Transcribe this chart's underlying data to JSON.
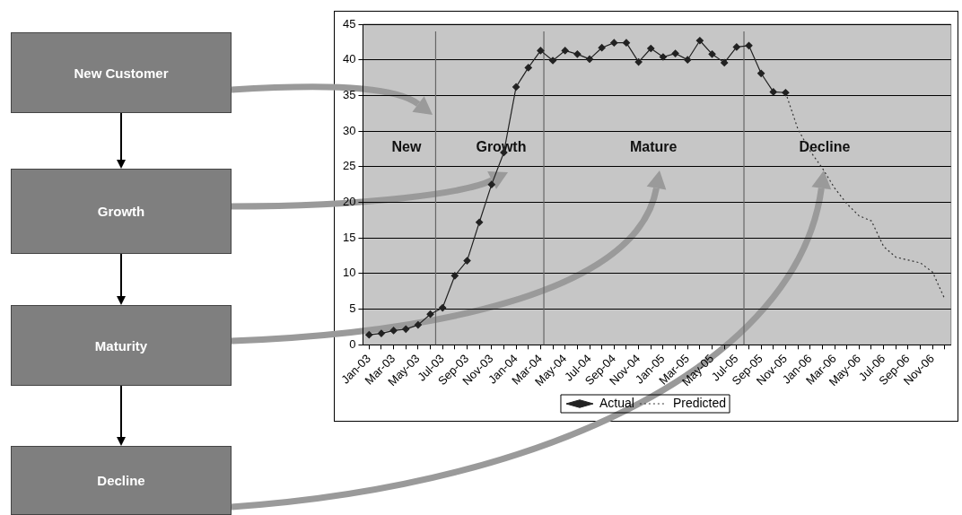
{
  "chart_data": {
    "type": "line",
    "xlim": [
      "2002-12-16",
      "2006-12-16"
    ],
    "xticks": [
      {
        "value": "2003-01",
        "label": "Jan-03"
      },
      {
        "value": "2003-02",
        "label": null
      },
      {
        "value": "2003-03",
        "label": "Mar-03"
      },
      {
        "value": "2003-04",
        "label": null
      },
      {
        "value": "2003-05",
        "label": "May-03"
      },
      {
        "value": "2003-06",
        "label": null
      },
      {
        "value": "2003-07",
        "label": "Jul-03"
      },
      {
        "value": "2003-08",
        "label": null
      },
      {
        "value": "2003-09",
        "label": "Sep-03"
      },
      {
        "value": "2003-10",
        "label": null
      },
      {
        "value": "2003-11",
        "label": "Nov-03"
      },
      {
        "value": "2003-12",
        "label": null
      },
      {
        "value": "2004-01",
        "label": "Jan-04"
      },
      {
        "value": "2004-02",
        "label": null
      },
      {
        "value": "2004-03",
        "label": "Mar-04"
      },
      {
        "value": "2004-04",
        "label": null
      },
      {
        "value": "2004-05",
        "label": "May-04"
      },
      {
        "value": "2004-06",
        "label": null
      },
      {
        "value": "2004-07",
        "label": "Jul-04"
      },
      {
        "value": "2004-08",
        "label": null
      },
      {
        "value": "2004-09",
        "label": "Sep-04"
      },
      {
        "value": "2004-10",
        "label": null
      },
      {
        "value": "2004-11",
        "label": "Nov-04"
      },
      {
        "value": "2004-12",
        "label": null
      },
      {
        "value": "2005-01",
        "label": "Jan-05"
      },
      {
        "value": "2005-02",
        "label": null
      },
      {
        "value": "2005-03",
        "label": "Mar-05"
      },
      {
        "value": "2005-04",
        "label": null
      },
      {
        "value": "2005-05",
        "label": "May-05"
      },
      {
        "value": "2005-06",
        "label": null
      },
      {
        "value": "2005-07",
        "label": "Jul-05"
      },
      {
        "value": "2005-08",
        "label": null
      },
      {
        "value": "2005-09",
        "label": "Sep-05"
      },
      {
        "value": "2005-10",
        "label": null
      },
      {
        "value": "2005-11",
        "label": "Nov-05"
      },
      {
        "value": "2005-12",
        "label": null
      },
      {
        "value": "2006-01",
        "label": "Jan-06"
      },
      {
        "value": "2006-02",
        "label": null
      },
      {
        "value": "2006-03",
        "label": "Mar-06"
      },
      {
        "value": "2006-04",
        "label": null
      },
      {
        "value": "2006-05",
        "label": "May-06"
      },
      {
        "value": "2006-06",
        "label": null
      },
      {
        "value": "2006-07",
        "label": "Jul-06"
      },
      {
        "value": "2006-08",
        "label": null
      },
      {
        "value": "2006-09",
        "label": "Sep-06"
      },
      {
        "value": "2006-10",
        "label": null
      },
      {
        "value": "2006-11",
        "label": "Nov-06"
      },
      {
        "value": "2006-12",
        "label": null
      }
    ],
    "ylim": [
      0,
      45
    ],
    "yticks": [
      0,
      5,
      10,
      15,
      20,
      25,
      30,
      35,
      40,
      45
    ],
    "grid": "y",
    "legend": "bottom",
    "series": [
      {
        "name": "Actual",
        "color": "#222222",
        "marker": "diamond",
        "line_style": "solid",
        "x": [
          "2003-01",
          "2003-02",
          "2003-03",
          "2003-04",
          "2003-05",
          "2003-06",
          "2003-07",
          "2003-08",
          "2003-09",
          "2003-10",
          "2003-11",
          "2003-12",
          "2004-01",
          "2004-02",
          "2004-03",
          "2004-04",
          "2004-05",
          "2004-06",
          "2004-07",
          "2004-08",
          "2004-09",
          "2004-10",
          "2004-11",
          "2004-12",
          "2005-01",
          "2005-02",
          "2005-03",
          "2005-04",
          "2005-05",
          "2005-06",
          "2005-07",
          "2005-08",
          "2005-09",
          "2005-10",
          "2005-11"
        ],
        "values": [
          1.4,
          1.6,
          2.0,
          2.2,
          2.8,
          4.3,
          5.2,
          9.7,
          11.8,
          17.2,
          22.5,
          27.0,
          36.2,
          38.9,
          41.3,
          39.9,
          41.3,
          40.8,
          40.1,
          41.7,
          42.4,
          42.4,
          39.7,
          41.6,
          40.4,
          40.9,
          40.0,
          42.7,
          40.8,
          39.6,
          41.8,
          42.0,
          38.1,
          35.5,
          35.4
        ]
      },
      {
        "name": "Predicted",
        "color": "#333333",
        "marker": "none",
        "line_style": "dotted",
        "x": [
          "2005-11",
          "2005-12",
          "2006-01",
          "2006-02",
          "2006-03",
          "2006-04",
          "2006-05",
          "2006-06",
          "2006-07",
          "2006-08",
          "2006-09",
          "2006-10",
          "2006-11",
          "2006-12"
        ],
        "values": [
          35.4,
          30.3,
          27.2,
          24.8,
          22.0,
          19.8,
          18.1,
          17.4,
          13.8,
          12.3,
          11.9,
          11.5,
          10.2,
          6.4
        ]
      }
    ],
    "ref_lines": [
      {
        "axis": "x",
        "value": "2003-06-14",
        "color": "#666666"
      },
      {
        "axis": "x",
        "value": "2004-03-09",
        "color": "#666666"
      },
      {
        "axis": "x",
        "value": "2005-07-19",
        "color": "#666666"
      }
    ],
    "annotations": [
      "New",
      "Growth",
      "Mature",
      "Decline",
      "New Customer",
      "Growth",
      "Maturity",
      "Decline"
    ]
  }
}
